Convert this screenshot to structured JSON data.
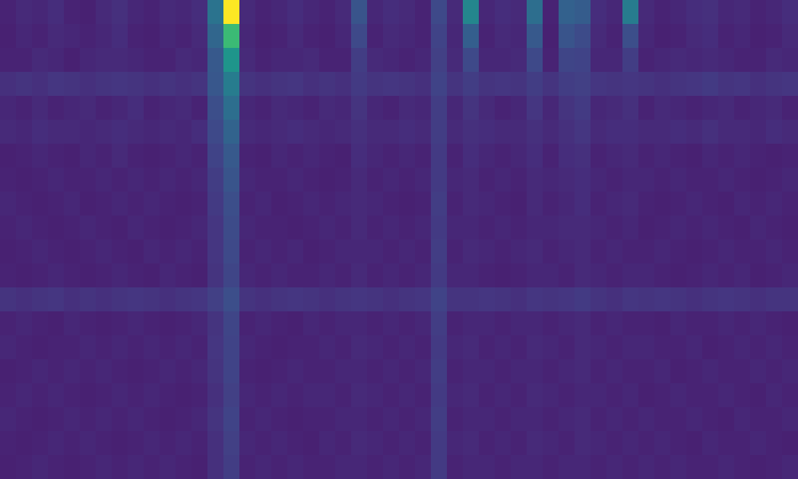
{
  "chart_data": {
    "type": "heatmap",
    "color": "viridis",
    "tick_labels": false,
    "color_range": [
      0,
      100
    ],
    "cells": [
      [
        10,
        12,
        11,
        13,
        10,
        9,
        12,
        14,
        11,
        10,
        12,
        11,
        13,
        38,
        100,
        12,
        10,
        11,
        13,
        11,
        10,
        12,
        26,
        11,
        13,
        12,
        10,
        22,
        12,
        46,
        11,
        13,
        12,
        36,
        10,
        31,
        29,
        13,
        11,
        42,
        12,
        10,
        11,
        13,
        14,
        11,
        12,
        10,
        11,
        13
      ],
      [
        9,
        11,
        10,
        12,
        11,
        10,
        11,
        13,
        10,
        9,
        11,
        10,
        12,
        33,
        68,
        11,
        9,
        10,
        12,
        10,
        9,
        11,
        22,
        10,
        12,
        11,
        10,
        20,
        11,
        30,
        10,
        12,
        11,
        28,
        9,
        26,
        23,
        12,
        10,
        24,
        11,
        9,
        10,
        12,
        13,
        10,
        11,
        9,
        10,
        12
      ],
      [
        10,
        10,
        12,
        11,
        9,
        11,
        12,
        12,
        11,
        10,
        10,
        12,
        11,
        28,
        52,
        12,
        10,
        11,
        11,
        12,
        10,
        10,
        18,
        12,
        11,
        10,
        11,
        19,
        12,
        22,
        11,
        11,
        12,
        22,
        10,
        21,
        20,
        11,
        11,
        18,
        10,
        11,
        12,
        11,
        12,
        11,
        10,
        10,
        12,
        11
      ],
      [
        14,
        15,
        14,
        16,
        15,
        14,
        15,
        16,
        15,
        14,
        15,
        14,
        15,
        27,
        42,
        15,
        14,
        15,
        16,
        14,
        15,
        14,
        17,
        15,
        16,
        15,
        14,
        20,
        15,
        18,
        15,
        16,
        15,
        18,
        15,
        18,
        19,
        16,
        15,
        16,
        15,
        14,
        15,
        16,
        17,
        15,
        16,
        14,
        15,
        16
      ],
      [
        11,
        10,
        12,
        10,
        11,
        12,
        10,
        11,
        13,
        10,
        11,
        12,
        10,
        24,
        36,
        11,
        10,
        12,
        11,
        10,
        12,
        11,
        15,
        11,
        10,
        12,
        11,
        18,
        11,
        15,
        12,
        10,
        11,
        16,
        11,
        15,
        17,
        11,
        12,
        14,
        10,
        12,
        11,
        10,
        11,
        12,
        10,
        11,
        12,
        10
      ],
      [
        12,
        11,
        13,
        12,
        12,
        11,
        12,
        13,
        12,
        11,
        12,
        11,
        13,
        22,
        32,
        12,
        11,
        12,
        13,
        12,
        11,
        12,
        14,
        12,
        12,
        13,
        12,
        18,
        12,
        14,
        13,
        12,
        12,
        14,
        12,
        14,
        16,
        12,
        13,
        13,
        12,
        12,
        13,
        12,
        14,
        12,
        12,
        11,
        13,
        12
      ],
      [
        9,
        10,
        11,
        10,
        9,
        11,
        10,
        12,
        10,
        9,
        10,
        11,
        10,
        20,
        28,
        10,
        9,
        11,
        10,
        11,
        10,
        9,
        13,
        11,
        10,
        11,
        10,
        17,
        10,
        13,
        11,
        10,
        11,
        13,
        10,
        13,
        14,
        10,
        11,
        12,
        10,
        11,
        10,
        9,
        11,
        10,
        11,
        10,
        9,
        10
      ],
      [
        10,
        9,
        10,
        11,
        10,
        10,
        11,
        10,
        11,
        10,
        11,
        10,
        11,
        18,
        26,
        11,
        10,
        10,
        11,
        10,
        9,
        10,
        12,
        10,
        11,
        10,
        11,
        17,
        11,
        12,
        10,
        11,
        10,
        12,
        11,
        12,
        13,
        11,
        10,
        11,
        11,
        10,
        11,
        10,
        10,
        11,
        10,
        9,
        10,
        11
      ],
      [
        11,
        10,
        9,
        10,
        11,
        9,
        10,
        11,
        10,
        11,
        10,
        9,
        10,
        17,
        24,
        10,
        11,
        9,
        10,
        11,
        10,
        11,
        12,
        11,
        10,
        9,
        10,
        18,
        10,
        12,
        11,
        10,
        9,
        12,
        10,
        11,
        13,
        10,
        11,
        12,
        10,
        9,
        10,
        11,
        10,
        9,
        11,
        10,
        11,
        10
      ],
      [
        10,
        11,
        10,
        9,
        10,
        11,
        10,
        9,
        11,
        10,
        9,
        10,
        11,
        16,
        23,
        11,
        10,
        10,
        9,
        10,
        11,
        10,
        12,
        10,
        11,
        10,
        11,
        17,
        11,
        11,
        10,
        11,
        10,
        11,
        11,
        12,
        12,
        11,
        10,
        11,
        9,
        10,
        11,
        10,
        11,
        10,
        9,
        11,
        10,
        9
      ],
      [
        9,
        10,
        11,
        10,
        9,
        10,
        11,
        10,
        9,
        11,
        10,
        11,
        10,
        16,
        22,
        10,
        11,
        10,
        11,
        9,
        10,
        11,
        11,
        11,
        10,
        11,
        10,
        18,
        10,
        12,
        11,
        10,
        11,
        12,
        10,
        11,
        12,
        10,
        11,
        10,
        10,
        11,
        10,
        9,
        10,
        11,
        10,
        10,
        11,
        10
      ],
      [
        10,
        9,
        10,
        11,
        10,
        9,
        10,
        11,
        10,
        9,
        11,
        10,
        9,
        15,
        21,
        11,
        10,
        11,
        10,
        10,
        11,
        10,
        12,
        10,
        11,
        10,
        11,
        17,
        11,
        11,
        10,
        9,
        10,
        11,
        11,
        10,
        12,
        11,
        10,
        11,
        11,
        10,
        9,
        10,
        11,
        10,
        11,
        9,
        10,
        11
      ],
      [
        15,
        14,
        15,
        16,
        14,
        15,
        14,
        15,
        16,
        15,
        14,
        15,
        16,
        19,
        24,
        15,
        14,
        15,
        16,
        15,
        14,
        15,
        16,
        15,
        14,
        15,
        16,
        20,
        15,
        15,
        16,
        15,
        14,
        16,
        15,
        16,
        17,
        15,
        14,
        16,
        15,
        16,
        15,
        14,
        15,
        16,
        15,
        14,
        15,
        15
      ],
      [
        10,
        11,
        10,
        9,
        11,
        10,
        9,
        10,
        11,
        10,
        9,
        10,
        11,
        15,
        21,
        10,
        11,
        10,
        9,
        11,
        10,
        11,
        11,
        10,
        11,
        10,
        11,
        18,
        10,
        11,
        11,
        10,
        11,
        11,
        10,
        11,
        12,
        10,
        11,
        10,
        10,
        9,
        11,
        10,
        10,
        11,
        10,
        11,
        10,
        9
      ],
      [
        11,
        10,
        9,
        10,
        10,
        11,
        10,
        11,
        10,
        11,
        10,
        11,
        10,
        16,
        20,
        11,
        10,
        9,
        10,
        10,
        11,
        10,
        12,
        11,
        10,
        11,
        10,
        17,
        11,
        12,
        10,
        11,
        10,
        12,
        11,
        10,
        12,
        11,
        10,
        11,
        11,
        10,
        10,
        11,
        9,
        10,
        11,
        10,
        11,
        10
      ],
      [
        9,
        10,
        11,
        10,
        11,
        10,
        11,
        10,
        9,
        10,
        11,
        10,
        11,
        15,
        20,
        10,
        9,
        10,
        11,
        10,
        10,
        11,
        11,
        10,
        11,
        10,
        11,
        18,
        10,
        11,
        11,
        10,
        11,
        11,
        10,
        11,
        12,
        10,
        11,
        10,
        10,
        11,
        9,
        10,
        11,
        10,
        10,
        11,
        10,
        11
      ],
      [
        10,
        11,
        10,
        11,
        10,
        9,
        10,
        11,
        10,
        11,
        10,
        9,
        10,
        14,
        19,
        11,
        10,
        11,
        10,
        11,
        11,
        10,
        12,
        11,
        10,
        11,
        10,
        17,
        11,
        12,
        10,
        11,
        10,
        12,
        11,
        10,
        11,
        11,
        10,
        11,
        9,
        10,
        11,
        10,
        10,
        11,
        10,
        9,
        11,
        10
      ],
      [
        11,
        10,
        9,
        10,
        11,
        10,
        11,
        10,
        11,
        10,
        9,
        10,
        11,
        15,
        20,
        10,
        11,
        10,
        9,
        10,
        10,
        11,
        11,
        10,
        11,
        10,
        11,
        18,
        10,
        11,
        11,
        10,
        11,
        11,
        10,
        11,
        12,
        10,
        11,
        10,
        11,
        10,
        10,
        11,
        10,
        9,
        11,
        10,
        10,
        11
      ],
      [
        10,
        9,
        10,
        11,
        10,
        11,
        10,
        9,
        10,
        11,
        10,
        11,
        10,
        14,
        19,
        11,
        10,
        11,
        10,
        9,
        11,
        10,
        12,
        11,
        10,
        11,
        10,
        17,
        11,
        12,
        10,
        11,
        10,
        12,
        11,
        10,
        12,
        11,
        10,
        11,
        10,
        11,
        10,
        9,
        11,
        10,
        10,
        11,
        10,
        9
      ],
      [
        9,
        10,
        11,
        10,
        9,
        10,
        11,
        10,
        11,
        10,
        11,
        10,
        9,
        14,
        18,
        10,
        11,
        10,
        11,
        10,
        10,
        11,
        11,
        10,
        11,
        10,
        11,
        17,
        10,
        11,
        11,
        10,
        11,
        11,
        10,
        11,
        11,
        10,
        11,
        10,
        11,
        10,
        11,
        10,
        10,
        11,
        10,
        9,
        10,
        11
      ]
    ]
  }
}
